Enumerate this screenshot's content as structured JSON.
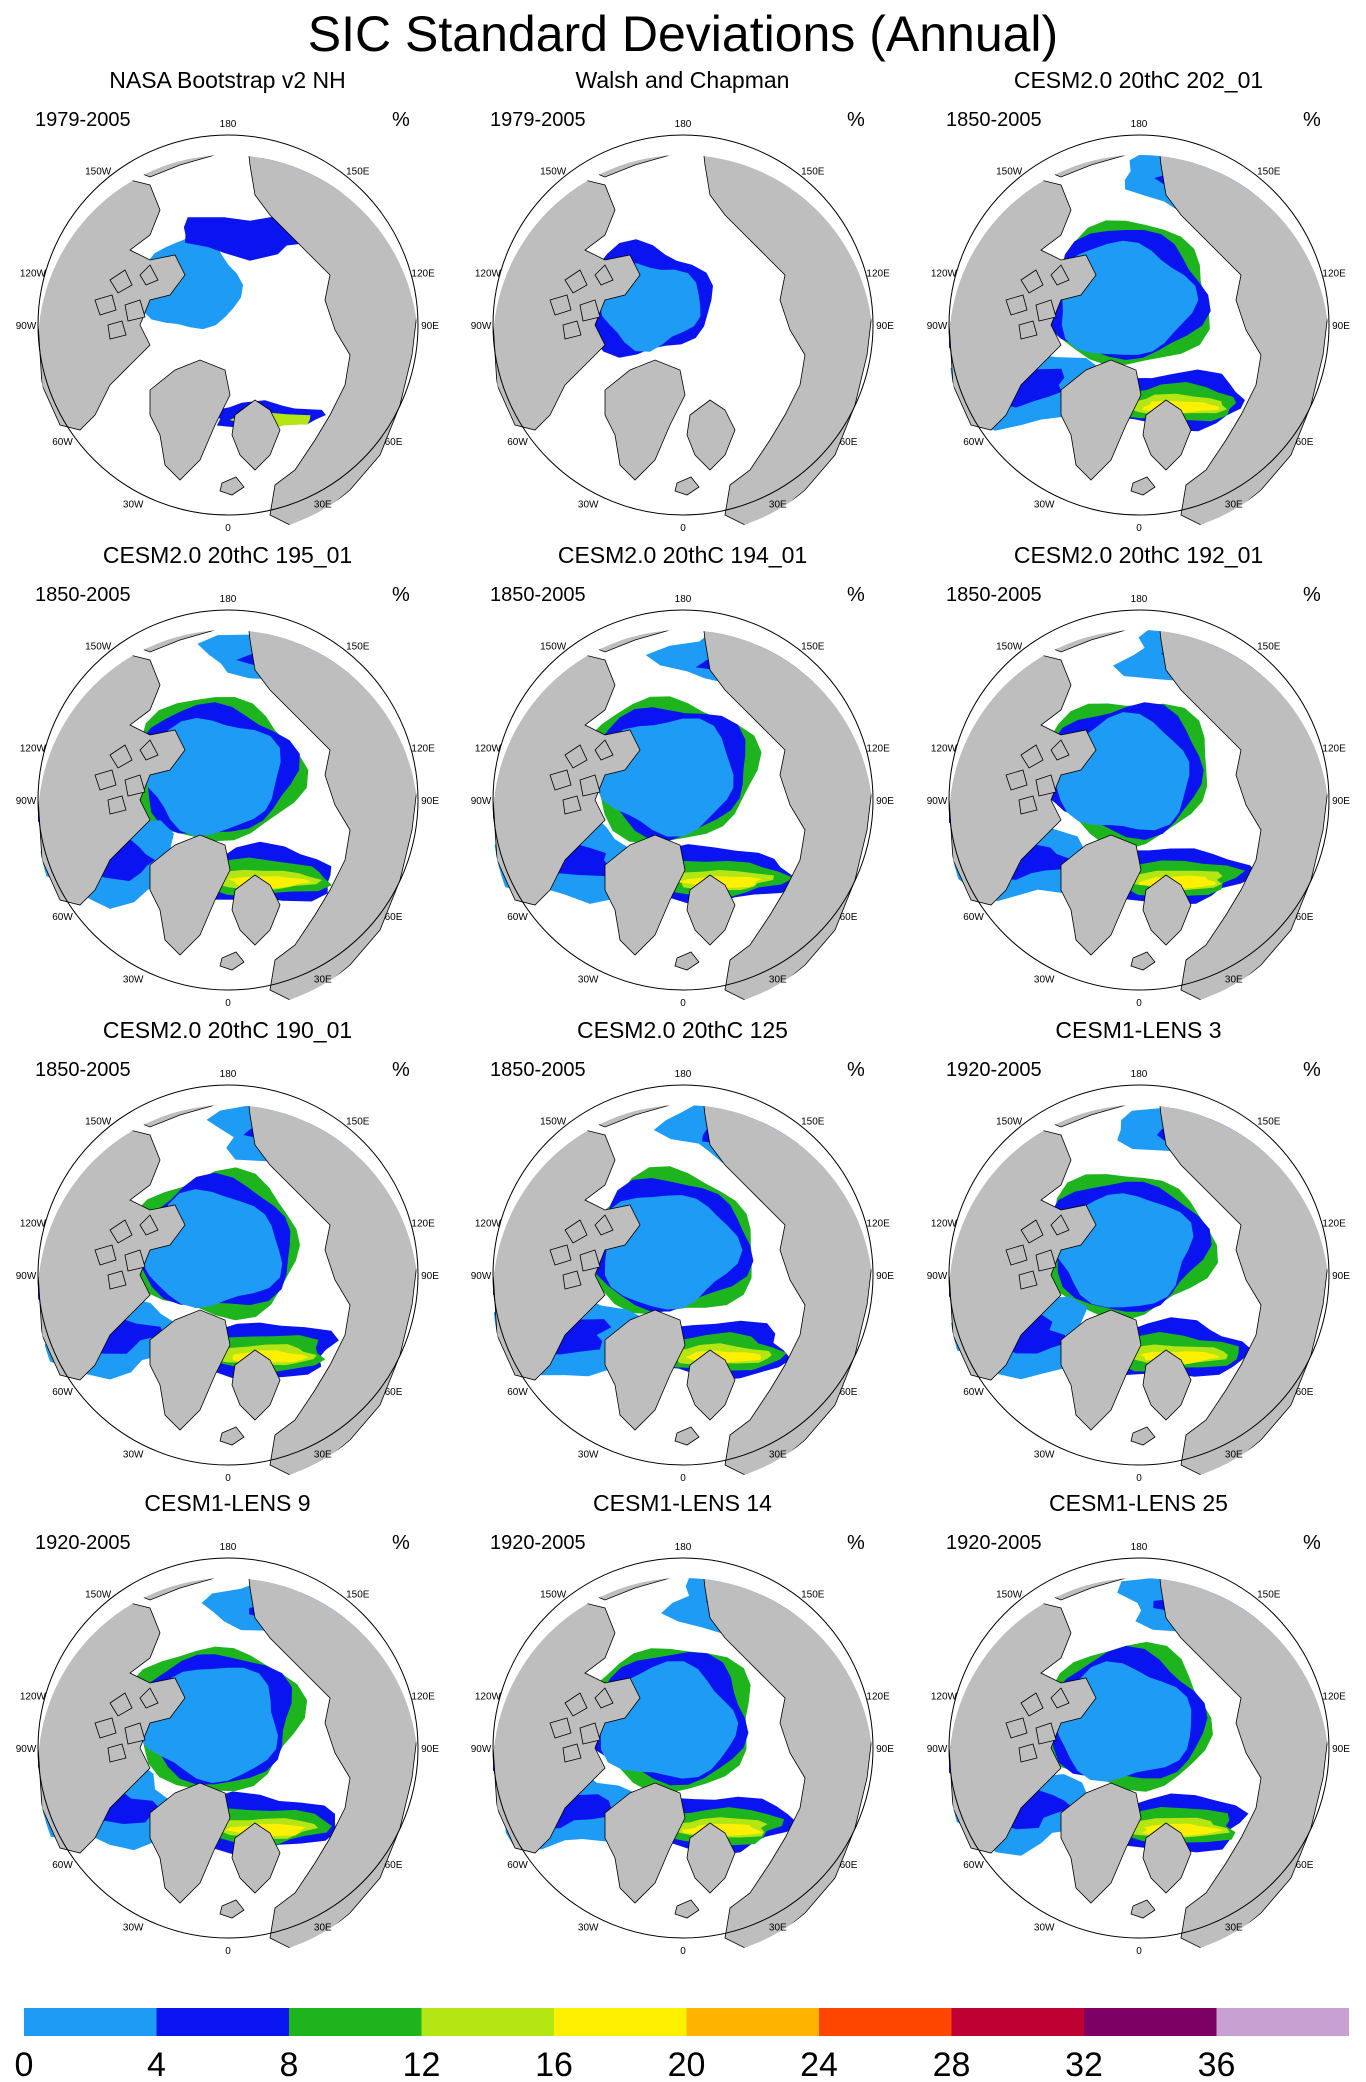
{
  "figure": {
    "title": "SIC Standard Deviations (Annual)",
    "unit": "%"
  },
  "panels": [
    {
      "title": "NASA Bootstrap v2 NH",
      "period": "1979-2005"
    },
    {
      "title": "Walsh and Chapman",
      "period": "1979-2005"
    },
    {
      "title": "CESM2.0 20thC 202_01",
      "period": "1850-2005"
    },
    {
      "title": "CESM2.0 20thC 195_01",
      "period": "1850-2005"
    },
    {
      "title": "CESM2.0 20thC 194_01",
      "period": "1850-2005"
    },
    {
      "title": "CESM2.0 20thC 192_01",
      "period": "1850-2005"
    },
    {
      "title": "CESM2.0 20thC 190_01",
      "period": "1850-2005"
    },
    {
      "title": "CESM2.0 20thC 125",
      "period": "1850-2005"
    },
    {
      "title": "CESM1-LENS 3",
      "period": "1920-2005"
    },
    {
      "title": "CESM1-LENS 9",
      "period": "1920-2005"
    },
    {
      "title": "CESM1-LENS 14",
      "period": "1920-2005"
    },
    {
      "title": "CESM1-LENS 25",
      "period": "1920-2005"
    }
  ],
  "longitude_labels": [
    "180",
    "150E",
    "120E",
    "90E",
    "60E",
    "30E",
    "0",
    "30W",
    "60W",
    "90W",
    "120W",
    "150W"
  ],
  "colorbar": {
    "labels": [
      "0",
      "4",
      "8",
      "12",
      "16",
      "20",
      "24",
      "28",
      "32",
      "36"
    ],
    "colors": [
      "#1e9bf5",
      "#0a14f0",
      "#1eb41e",
      "#b4e614",
      "#fff000",
      "#ffb400",
      "#ff4600",
      "#be0032",
      "#7d0064",
      "#c8a0d2"
    ]
  },
  "colors": {
    "land": "#bebebe",
    "ocean": "#ffffff",
    "coast": "#000000"
  }
}
